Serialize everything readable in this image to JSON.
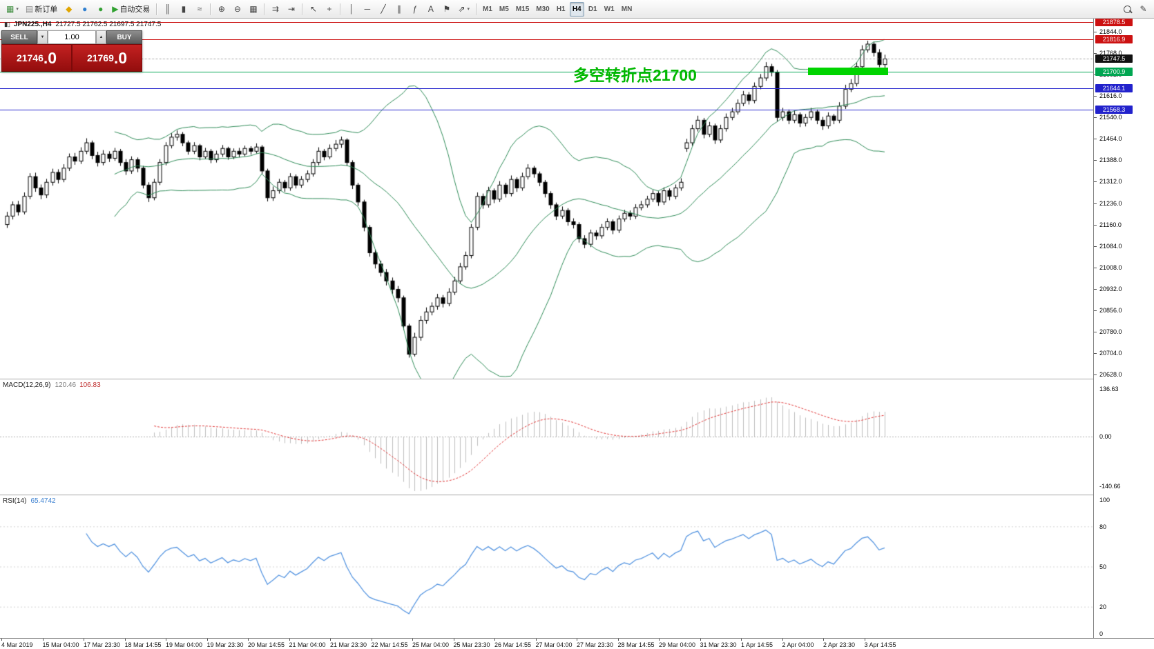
{
  "colors": {
    "bollinger": "#2e8b57",
    "macd_hist": "#bcbcbc",
    "macd_signal": "#e03535",
    "rsi_line": "#5494e0",
    "highlight": "#00d400",
    "annotation": "#00b800",
    "up_candle": "#ffffff",
    "down_candle": "#000000",
    "red_line": "#cc1111",
    "blue_line": "#2222cc",
    "green_line": "#00a651"
  },
  "toolbar": {
    "items": [
      {
        "name": "new-chart-button",
        "glyph": "▦",
        "color": "#3c8c3c",
        "dropdown": true
      },
      {
        "name": "new-order-button",
        "glyph": "▤",
        "color": "#888888",
        "label": "新订单"
      },
      {
        "name": "metaeditor-button",
        "glyph": "◆",
        "color": "#e0a500"
      },
      {
        "name": "chart-window-button",
        "glyph": "●",
        "color": "#2f7fd0"
      },
      {
        "name": "help-button",
        "glyph": "●",
        "color": "#35a035"
      },
      {
        "name": "autotrading-button",
        "glyph": "▶",
        "color": "#2fa12f",
        "label": "自动交易"
      },
      {
        "sep": true
      },
      {
        "name": "bars-chart-button",
        "glyph": "║"
      },
      {
        "name": "candlestick-chart-button",
        "glyph": "▮"
      },
      {
        "name": "line-chart-button",
        "glyph": "≈"
      },
      {
        "sep": true
      },
      {
        "name": "zoom-in-button",
        "glyph": "⊕"
      },
      {
        "name": "zoom-out-button",
        "glyph": "⊖"
      },
      {
        "name": "tile-windows-button",
        "glyph": "▦"
      },
      {
        "sep": true
      },
      {
        "name": "auto-scroll-button",
        "glyph": "⇉"
      },
      {
        "name": "chart-shift-button",
        "glyph": "⇥"
      },
      {
        "sep": true
      },
      {
        "name": "cursor-button",
        "glyph": "↖"
      },
      {
        "name": "crosshair-button",
        "glyph": "+"
      },
      {
        "sep": true
      },
      {
        "name": "vertical-line-button",
        "glyph": "│"
      },
      {
        "name": "horizontal-line-button",
        "glyph": "─"
      },
      {
        "name": "trendline-button",
        "glyph": "╱"
      },
      {
        "name": "equidistant-channel-button",
        "glyph": "∥"
      },
      {
        "name": "fibonacci-button",
        "glyph": "ƒ"
      },
      {
        "name": "text-button",
        "glyph": "A"
      },
      {
        "name": "text-label-button",
        "glyph": "⚑"
      },
      {
        "name": "arrows-button",
        "glyph": "⇗",
        "dropdown": true
      },
      {
        "sep": true
      }
    ],
    "timeframes": [
      {
        "label": "M1"
      },
      {
        "label": "M5"
      },
      {
        "label": "M15"
      },
      {
        "label": "M30"
      },
      {
        "label": "H1"
      },
      {
        "label": "H4",
        "active": true
      },
      {
        "label": "D1"
      },
      {
        "label": "W1"
      },
      {
        "label": "MN"
      }
    ],
    "right_items": [
      {
        "name": "search-button",
        "css_icon": "mag"
      },
      {
        "name": "quick-edit-button",
        "glyph": "✎"
      }
    ]
  },
  "chart": {
    "title": {
      "symbol": "JPN225.,H4",
      "ohlc": "21727.5 21762.5 21697.5 21747.5"
    },
    "one_click": {
      "sell_label": "SELL",
      "buy_label": "BUY",
      "volume": "1.00",
      "sell_price": "21746",
      "sell_pips": ".0",
      "buy_price": "21769",
      "buy_pips": ".0"
    },
    "levels": [
      {
        "price": 21878.5,
        "label": "21878.5",
        "color": "#cc1111"
      },
      {
        "price": 21816.9,
        "label": "21816.9",
        "color": "#cc1111"
      },
      {
        "price": 21747.5,
        "label": "21747.5",
        "color": "#111111",
        "current": true
      },
      {
        "price": 21700.9,
        "label": "21700.9",
        "color": "#00a651"
      },
      {
        "price": 21644.1,
        "label": "21644.1",
        "color": "#2222cc"
      },
      {
        "price": 21568.3,
        "label": "21568.3",
        "color": "#2222cc"
      }
    ],
    "axis_labels": [
      "21844.0",
      "21768.0",
      "21692.0",
      "21616.0",
      "21540.0",
      "21464.0",
      "21388.0",
      "21312.0",
      "21236.0",
      "21160.0",
      "21084.0",
      "21008.0",
      "20932.0",
      "20856.0",
      "20780.0",
      "20704.0",
      "20628.0"
    ],
    "annotation": {
      "text": "多空转折点21700",
      "index": 100,
      "price": 21736,
      "color": "#00b800",
      "font_size": 23
    },
    "highlight": {
      "start_index": 142,
      "end_index": 155,
      "price_top": 21718,
      "price_bottom": 21691,
      "color": "#00d400"
    }
  },
  "macd_panel": {
    "label": "MACD(12,26,9)",
    "value1": "120.46",
    "value2": "106.83",
    "axis": [
      "136.63",
      "0.00",
      "-140.66"
    ]
  },
  "rsi_panel": {
    "label": "RSI(14)",
    "value": "65.4742",
    "axis": [
      "100",
      "80",
      "50",
      "20",
      "0"
    ],
    "levels": [
      80,
      50,
      20
    ]
  },
  "time_axis": {
    "labels": [
      "4 Mar 2019",
      "15 Mar 04:00",
      "17 Mar 23:30",
      "18 Mar 14:55",
      "19 Mar 04:00",
      "19 Mar 23:30",
      "20 Mar 14:55",
      "21 Mar 04:00",
      "21 Mar 23:30",
      "22 Mar 14:55",
      "25 Mar 04:00",
      "25 Mar 23:30",
      "26 Mar 14:55",
      "27 Mar 04:00",
      "27 Mar 23:30",
      "28 Mar 14:55",
      "29 Mar 04:00",
      "31 Mar 23:30",
      "1 Apr 14:55",
      "2 Apr 04:00",
      "2 Apr 23:30",
      "3 Apr 14:55"
    ]
  },
  "chart_data": {
    "type": "candlestick",
    "symbol": "JPN225.",
    "timeframe": "H4",
    "price_range": [
      20628,
      21878.5
    ],
    "indicators": [
      {
        "name": "Bollinger Bands",
        "period": 20,
        "deviation": 2
      },
      {
        "name": "MACD",
        "fast": 12,
        "slow": 26,
        "signal": 9,
        "current": [
          120.46,
          106.83
        ]
      },
      {
        "name": "RSI",
        "period": 14,
        "current": 65.4742
      }
    ],
    "candles": [
      [
        21160,
        21205,
        21148,
        21190
      ],
      [
        21190,
        21242,
        21178,
        21230
      ],
      [
        21230,
        21244,
        21192,
        21205
      ],
      [
        21205,
        21274,
        21196,
        21260
      ],
      [
        21260,
        21342,
        21250,
        21330
      ],
      [
        21330,
        21344,
        21276,
        21290
      ],
      [
        21290,
        21302,
        21250,
        21265
      ],
      [
        21265,
        21322,
        21254,
        21310
      ],
      [
        21310,
        21358,
        21298,
        21345
      ],
      [
        21345,
        21356,
        21306,
        21320
      ],
      [
        21320,
        21374,
        21310,
        21360
      ],
      [
        21360,
        21412,
        21350,
        21400
      ],
      [
        21400,
        21414,
        21372,
        21385
      ],
      [
        21385,
        21434,
        21375,
        21420
      ],
      [
        21420,
        21466,
        21410,
        21450
      ],
      [
        21450,
        21458,
        21392,
        21405
      ],
      [
        21405,
        21418,
        21366,
        21380
      ],
      [
        21380,
        21424,
        21370,
        21410
      ],
      [
        21410,
        21420,
        21382,
        21395
      ],
      [
        21395,
        21432,
        21386,
        21420
      ],
      [
        21420,
        21428,
        21368,
        21380
      ],
      [
        21380,
        21392,
        21336,
        21350
      ],
      [
        21350,
        21402,
        21340,
        21390
      ],
      [
        21390,
        21398,
        21346,
        21360
      ],
      [
        21360,
        21368,
        21288,
        21300
      ],
      [
        21300,
        21310,
        21240,
        21255
      ],
      [
        21255,
        21322,
        21246,
        21310
      ],
      [
        21310,
        21392,
        21300,
        21380
      ],
      [
        21380,
        21452,
        21370,
        21440
      ],
      [
        21440,
        21484,
        21430,
        21470
      ],
      [
        21470,
        21494,
        21458,
        21480
      ],
      [
        21480,
        21488,
        21438,
        21450
      ],
      [
        21450,
        21458,
        21408,
        21420
      ],
      [
        21420,
        21452,
        21410,
        21440
      ],
      [
        21440,
        21446,
        21388,
        21400
      ],
      [
        21400,
        21432,
        21392,
        21420
      ],
      [
        21420,
        21428,
        21378,
        21390
      ],
      [
        21390,
        21422,
        21380,
        21410
      ],
      [
        21410,
        21442,
        21400,
        21430
      ],
      [
        21430,
        21436,
        21390,
        21400
      ],
      [
        21400,
        21430,
        21392,
        21420
      ],
      [
        21420,
        21432,
        21398,
        21410
      ],
      [
        21410,
        21440,
        21402,
        21430
      ],
      [
        21430,
        21438,
        21408,
        21420
      ],
      [
        21420,
        21448,
        21412,
        21435
      ],
      [
        21435,
        21442,
        21338,
        21350
      ],
      [
        21350,
        21358,
        21242,
        21255
      ],
      [
        21255,
        21295,
        21244,
        21280
      ],
      [
        21280,
        21322,
        21270,
        21310
      ],
      [
        21310,
        21318,
        21276,
        21290
      ],
      [
        21290,
        21342,
        21280,
        21330
      ],
      [
        21330,
        21338,
        21288,
        21300
      ],
      [
        21300,
        21332,
        21290,
        21320
      ],
      [
        21320,
        21352,
        21310,
        21340
      ],
      [
        21340,
        21392,
        21330,
        21380
      ],
      [
        21380,
        21434,
        21370,
        21420
      ],
      [
        21420,
        21428,
        21388,
        21400
      ],
      [
        21400,
        21444,
        21392,
        21430
      ],
      [
        21430,
        21460,
        21420,
        21445
      ],
      [
        21445,
        21472,
        21432,
        21460
      ],
      [
        21460,
        21466,
        21368,
        21380
      ],
      [
        21380,
        21388,
        21286,
        21300
      ],
      [
        21300,
        21308,
        21226,
        21240
      ],
      [
        21240,
        21248,
        21136,
        21150
      ],
      [
        21150,
        21158,
        21046,
        21060
      ],
      [
        21060,
        21072,
        21004,
        21020
      ],
      [
        21020,
        21032,
        20976,
        20990
      ],
      [
        20990,
        21002,
        20944,
        20960
      ],
      [
        20960,
        20972,
        20914,
        20930
      ],
      [
        20930,
        20942,
        20884,
        20900
      ],
      [
        20900,
        20908,
        20786,
        20800
      ],
      [
        20800,
        20808,
        20688,
        20700
      ],
      [
        20700,
        20776,
        20692,
        20760
      ],
      [
        20760,
        20836,
        20748,
        20820
      ],
      [
        20820,
        20866,
        20808,
        20850
      ],
      [
        20850,
        20884,
        20838,
        20870
      ],
      [
        20870,
        20914,
        20858,
        20900
      ],
      [
        20900,
        20910,
        20866,
        20880
      ],
      [
        20880,
        20934,
        20870,
        20920
      ],
      [
        20920,
        20974,
        20910,
        20960
      ],
      [
        20960,
        21024,
        20950,
        21010
      ],
      [
        21010,
        21064,
        21000,
        21050
      ],
      [
        21050,
        21162,
        21040,
        21150
      ],
      [
        21150,
        21274,
        21140,
        21260
      ],
      [
        21260,
        21270,
        21216,
        21230
      ],
      [
        21230,
        21294,
        21220,
        21280
      ],
      [
        21280,
        21288,
        21236,
        21250
      ],
      [
        21250,
        21314,
        21240,
        21300
      ],
      [
        21300,
        21308,
        21256,
        21270
      ],
      [
        21270,
        21334,
        21260,
        21320
      ],
      [
        21320,
        21328,
        21276,
        21290
      ],
      [
        21290,
        21344,
        21280,
        21330
      ],
      [
        21330,
        21374,
        21320,
        21360
      ],
      [
        21360,
        21368,
        21326,
        21340
      ],
      [
        21340,
        21348,
        21296,
        21310
      ],
      [
        21310,
        21318,
        21256,
        21270
      ],
      [
        21270,
        21278,
        21216,
        21230
      ],
      [
        21230,
        21238,
        21176,
        21190
      ],
      [
        21190,
        21224,
        21180,
        21210
      ],
      [
        21210,
        21218,
        21156,
        21170
      ],
      [
        21170,
        21182,
        21146,
        21160
      ],
      [
        21160,
        21168,
        21096,
        21110
      ],
      [
        21110,
        21122,
        21076,
        21090
      ],
      [
        21090,
        21142,
        21080,
        21130
      ],
      [
        21130,
        21140,
        21106,
        21120
      ],
      [
        21120,
        21162,
        21110,
        21150
      ],
      [
        21150,
        21182,
        21140,
        21170
      ],
      [
        21170,
        21178,
        21126,
        21140
      ],
      [
        21140,
        21192,
        21130,
        21180
      ],
      [
        21180,
        21212,
        21170,
        21200
      ],
      [
        21200,
        21210,
        21176,
        21190
      ],
      [
        21190,
        21232,
        21180,
        21220
      ],
      [
        21220,
        21244,
        21210,
        21230
      ],
      [
        21230,
        21262,
        21220,
        21250
      ],
      [
        21250,
        21282,
        21240,
        21270
      ],
      [
        21270,
        21278,
        21226,
        21240
      ],
      [
        21240,
        21292,
        21230,
        21280
      ],
      [
        21280,
        21288,
        21246,
        21260
      ],
      [
        21260,
        21302,
        21250,
        21290
      ],
      [
        21290,
        21324,
        21280,
        21310
      ],
      [
        21430,
        21464,
        21418,
        21450
      ],
      [
        21450,
        21514,
        21440,
        21500
      ],
      [
        21500,
        21546,
        21490,
        21530
      ],
      [
        21530,
        21538,
        21466,
        21480
      ],
      [
        21480,
        21524,
        21470,
        21510
      ],
      [
        21510,
        21518,
        21446,
        21460
      ],
      [
        21460,
        21514,
        21450,
        21500
      ],
      [
        21500,
        21554,
        21490,
        21540
      ],
      [
        21540,
        21574,
        21530,
        21560
      ],
      [
        21560,
        21604,
        21550,
        21590
      ],
      [
        21590,
        21634,
        21580,
        21620
      ],
      [
        21620,
        21630,
        21586,
        21600
      ],
      [
        21600,
        21664,
        21590,
        21650
      ],
      [
        21650,
        21694,
        21640,
        21680
      ],
      [
        21680,
        21736,
        21670,
        21720
      ],
      [
        21720,
        21730,
        21686,
        21700
      ],
      [
        21700,
        21708,
        21526,
        21540
      ],
      [
        21540,
        21574,
        21528,
        21560
      ],
      [
        21560,
        21568,
        21516,
        21530
      ],
      [
        21530,
        21564,
        21520,
        21550
      ],
      [
        21550,
        21558,
        21506,
        21520
      ],
      [
        21520,
        21552,
        21508,
        21540
      ],
      [
        21540,
        21574,
        21530,
        21560
      ],
      [
        21560,
        21568,
        21516,
        21530
      ],
      [
        21530,
        21542,
        21496,
        21510
      ],
      [
        21510,
        21558,
        21500,
        21545
      ],
      [
        21545,
        21552,
        21516,
        21530
      ],
      [
        21530,
        21594,
        21520,
        21580
      ],
      [
        21580,
        21656,
        21570,
        21640
      ],
      [
        21640,
        21676,
        21630,
        21660
      ],
      [
        21660,
        21736,
        21650,
        21720
      ],
      [
        21720,
        21796,
        21710,
        21780
      ],
      [
        21780,
        21812,
        21770,
        21800
      ],
      [
        21800,
        21808,
        21756,
        21770
      ],
      [
        21770,
        21782,
        21718,
        21727.5
      ],
      [
        21727.5,
        21762.5,
        21697.5,
        21747.5
      ]
    ]
  }
}
